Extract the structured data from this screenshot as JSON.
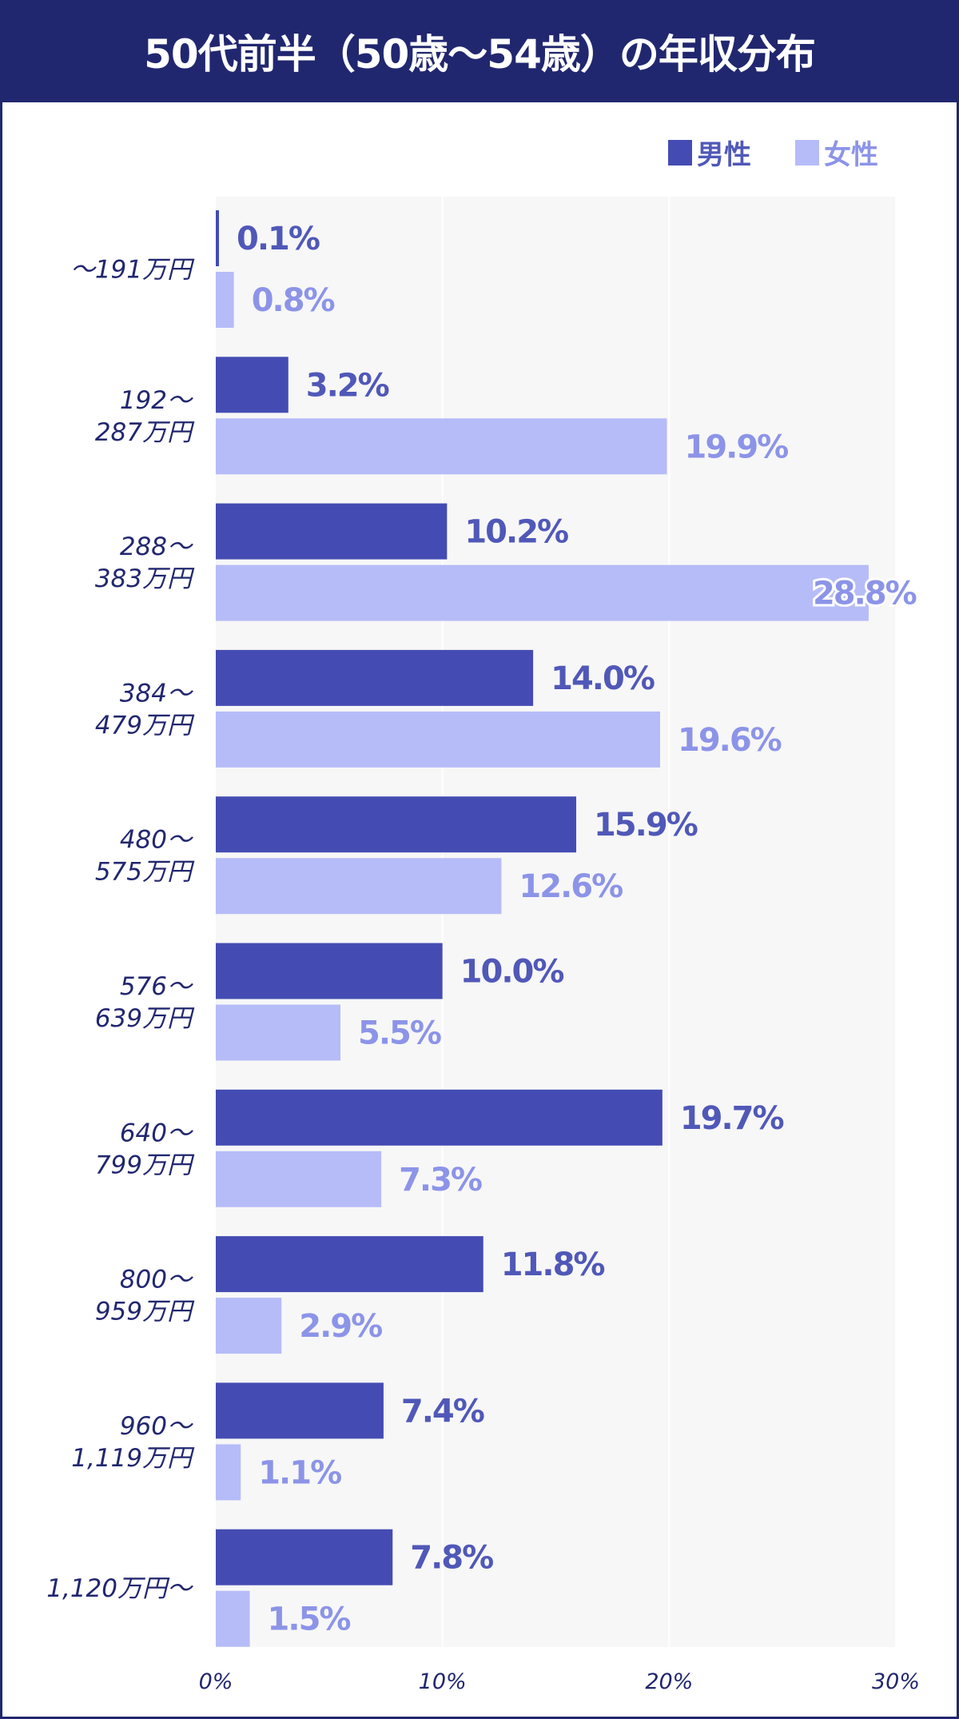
{
  "title": "50代前半（50歳〜54歳）の年収分布",
  "legend": {
    "male": "男性",
    "female": "女性"
  },
  "colors": {
    "header": "#21276f",
    "male": "#444cb3",
    "female": "#b6bcf8",
    "male_label": "#5058b8",
    "female_label": "#8c94e8",
    "plot_bg": "#f7f7f7"
  },
  "chart_data": {
    "type": "bar",
    "orientation": "horizontal",
    "title": "50代前半（50歳〜54歳）の年収分布",
    "categories": [
      [
        "〜191万円"
      ],
      [
        "192〜",
        "287万円"
      ],
      [
        "288〜",
        "383万円"
      ],
      [
        "384〜",
        "479万円"
      ],
      [
        "480〜",
        "575万円"
      ],
      [
        "576〜",
        "639万円"
      ],
      [
        "640〜",
        "799万円"
      ],
      [
        "800〜",
        "959万円"
      ],
      [
        "960〜",
        "1,119万円"
      ],
      [
        "1,120万円〜"
      ]
    ],
    "series": [
      {
        "name": "男性",
        "values": [
          0.1,
          3.2,
          10.2,
          14.0,
          15.9,
          10.0,
          19.7,
          11.8,
          7.4,
          7.8
        ]
      },
      {
        "name": "女性",
        "values": [
          0.8,
          19.9,
          28.8,
          19.6,
          12.6,
          5.5,
          7.3,
          2.9,
          1.1,
          1.5
        ]
      }
    ],
    "xlim": [
      0,
      30
    ],
    "xticks": [
      "0%",
      "10%",
      "20%",
      "30%"
    ],
    "grid": true,
    "legend_position": "top-right"
  }
}
